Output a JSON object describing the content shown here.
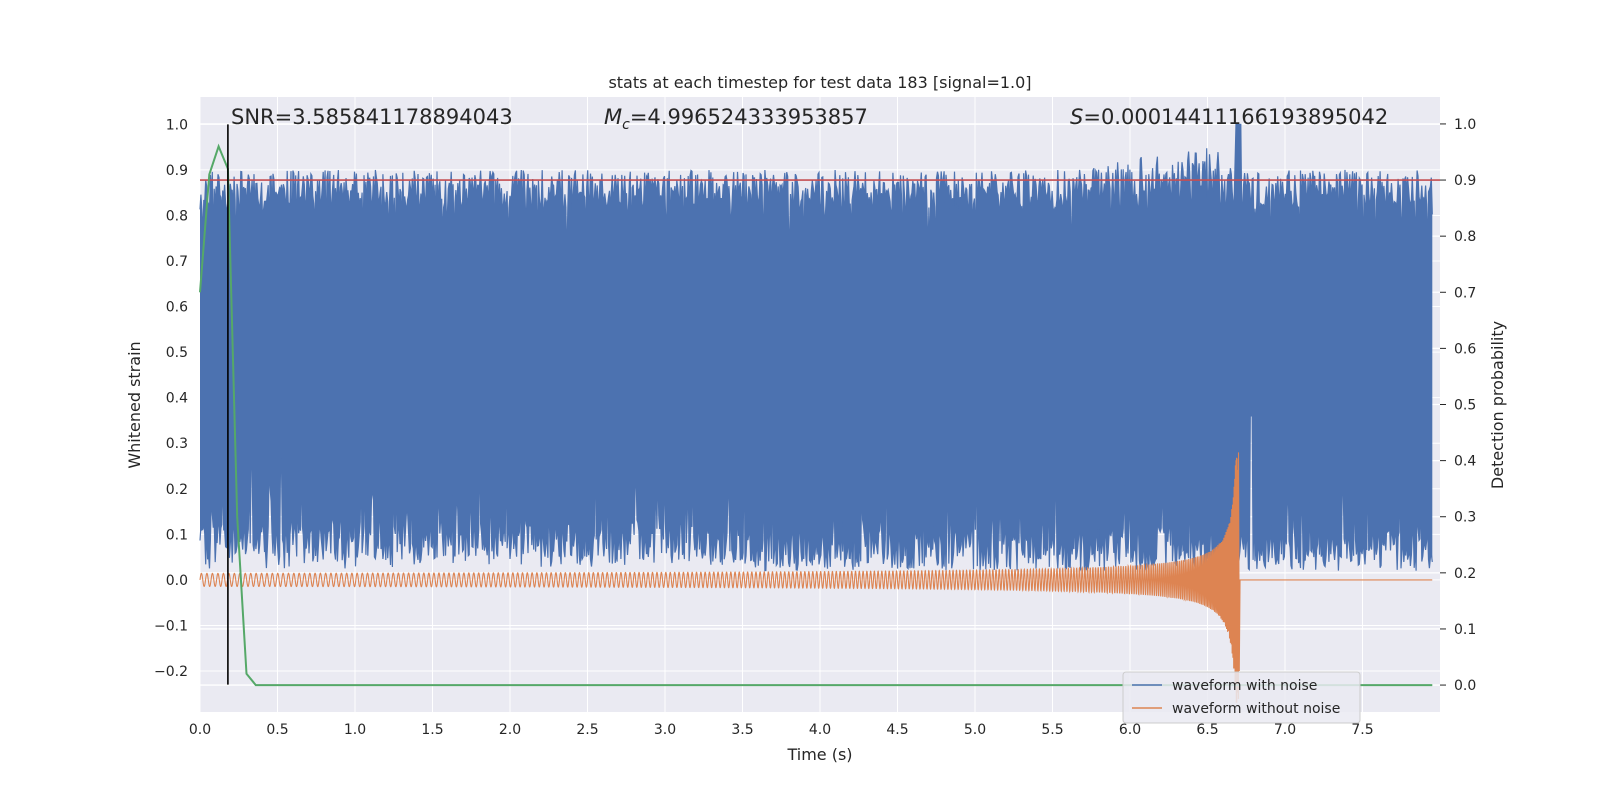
{
  "chart_data": {
    "type": "line",
    "title": "stats at each timestep for test data 183 [signal=1.0]",
    "xlabel": "Time (s)",
    "ylabel_left": "Whitened strain",
    "ylabel_right": "Detection probability",
    "xlim": [
      0.0,
      8.0
    ],
    "ylim_left": [
      -0.29,
      1.06
    ],
    "ylim_right": [
      -0.048,
      1.048
    ],
    "x_ticks": [
      "0.0",
      "0.5",
      "1.0",
      "1.5",
      "2.0",
      "2.5",
      "3.0",
      "3.5",
      "4.0",
      "4.5",
      "5.0",
      "5.5",
      "6.0",
      "6.5",
      "7.0",
      "7.5"
    ],
    "y_ticks_left": [
      "−0.2",
      "−0.1",
      "0.0",
      "0.1",
      "0.2",
      "0.3",
      "0.4",
      "0.5",
      "0.6",
      "0.7",
      "0.8",
      "0.9",
      "1.0"
    ],
    "y_ticks_right": [
      "0.0",
      "0.1",
      "0.2",
      "0.3",
      "0.4",
      "0.5",
      "0.6",
      "0.7",
      "0.8",
      "0.9",
      "1.0"
    ],
    "annotations": {
      "snr": "SNR=3.585841178894043",
      "mc_symbol": "M",
      "mc_sub": "c",
      "mc_value": "=4.996524333953857",
      "s_symbol": "S",
      "s_value": "=0.00014411166193895042"
    },
    "threshold_line": {
      "axis": "right",
      "value": 0.9,
      "color": "#c44e52"
    },
    "vertical_marker": {
      "x": 0.18,
      "color": "#000000"
    },
    "merger_time": 6.7,
    "noise_envelope": {
      "lower_typical": 0.02,
      "upper_typical": 0.83,
      "upper_peak": 1.0,
      "peak_time": 6.7
    },
    "series": [
      {
        "name": "waveform with noise",
        "color": "#4c72b0",
        "axis": "left"
      },
      {
        "name": "waveform without noise",
        "color": "#dd8452",
        "axis": "left"
      },
      {
        "name": "detection probability",
        "color": "#55a868",
        "axis": "right",
        "x": [
          0.0,
          0.06,
          0.12,
          0.18,
          0.24,
          0.3,
          0.36,
          0.42,
          7.95
        ],
        "y": [
          0.7,
          0.91,
          0.96,
          0.92,
          0.3,
          0.02,
          0.0,
          0.0,
          0.0
        ]
      }
    ],
    "legend": {
      "location": "lower-right",
      "items": [
        {
          "label": "waveform with noise",
          "color": "#4c72b0"
        },
        {
          "label": "waveform without noise",
          "color": "#dd8452"
        }
      ]
    },
    "grid": true
  }
}
